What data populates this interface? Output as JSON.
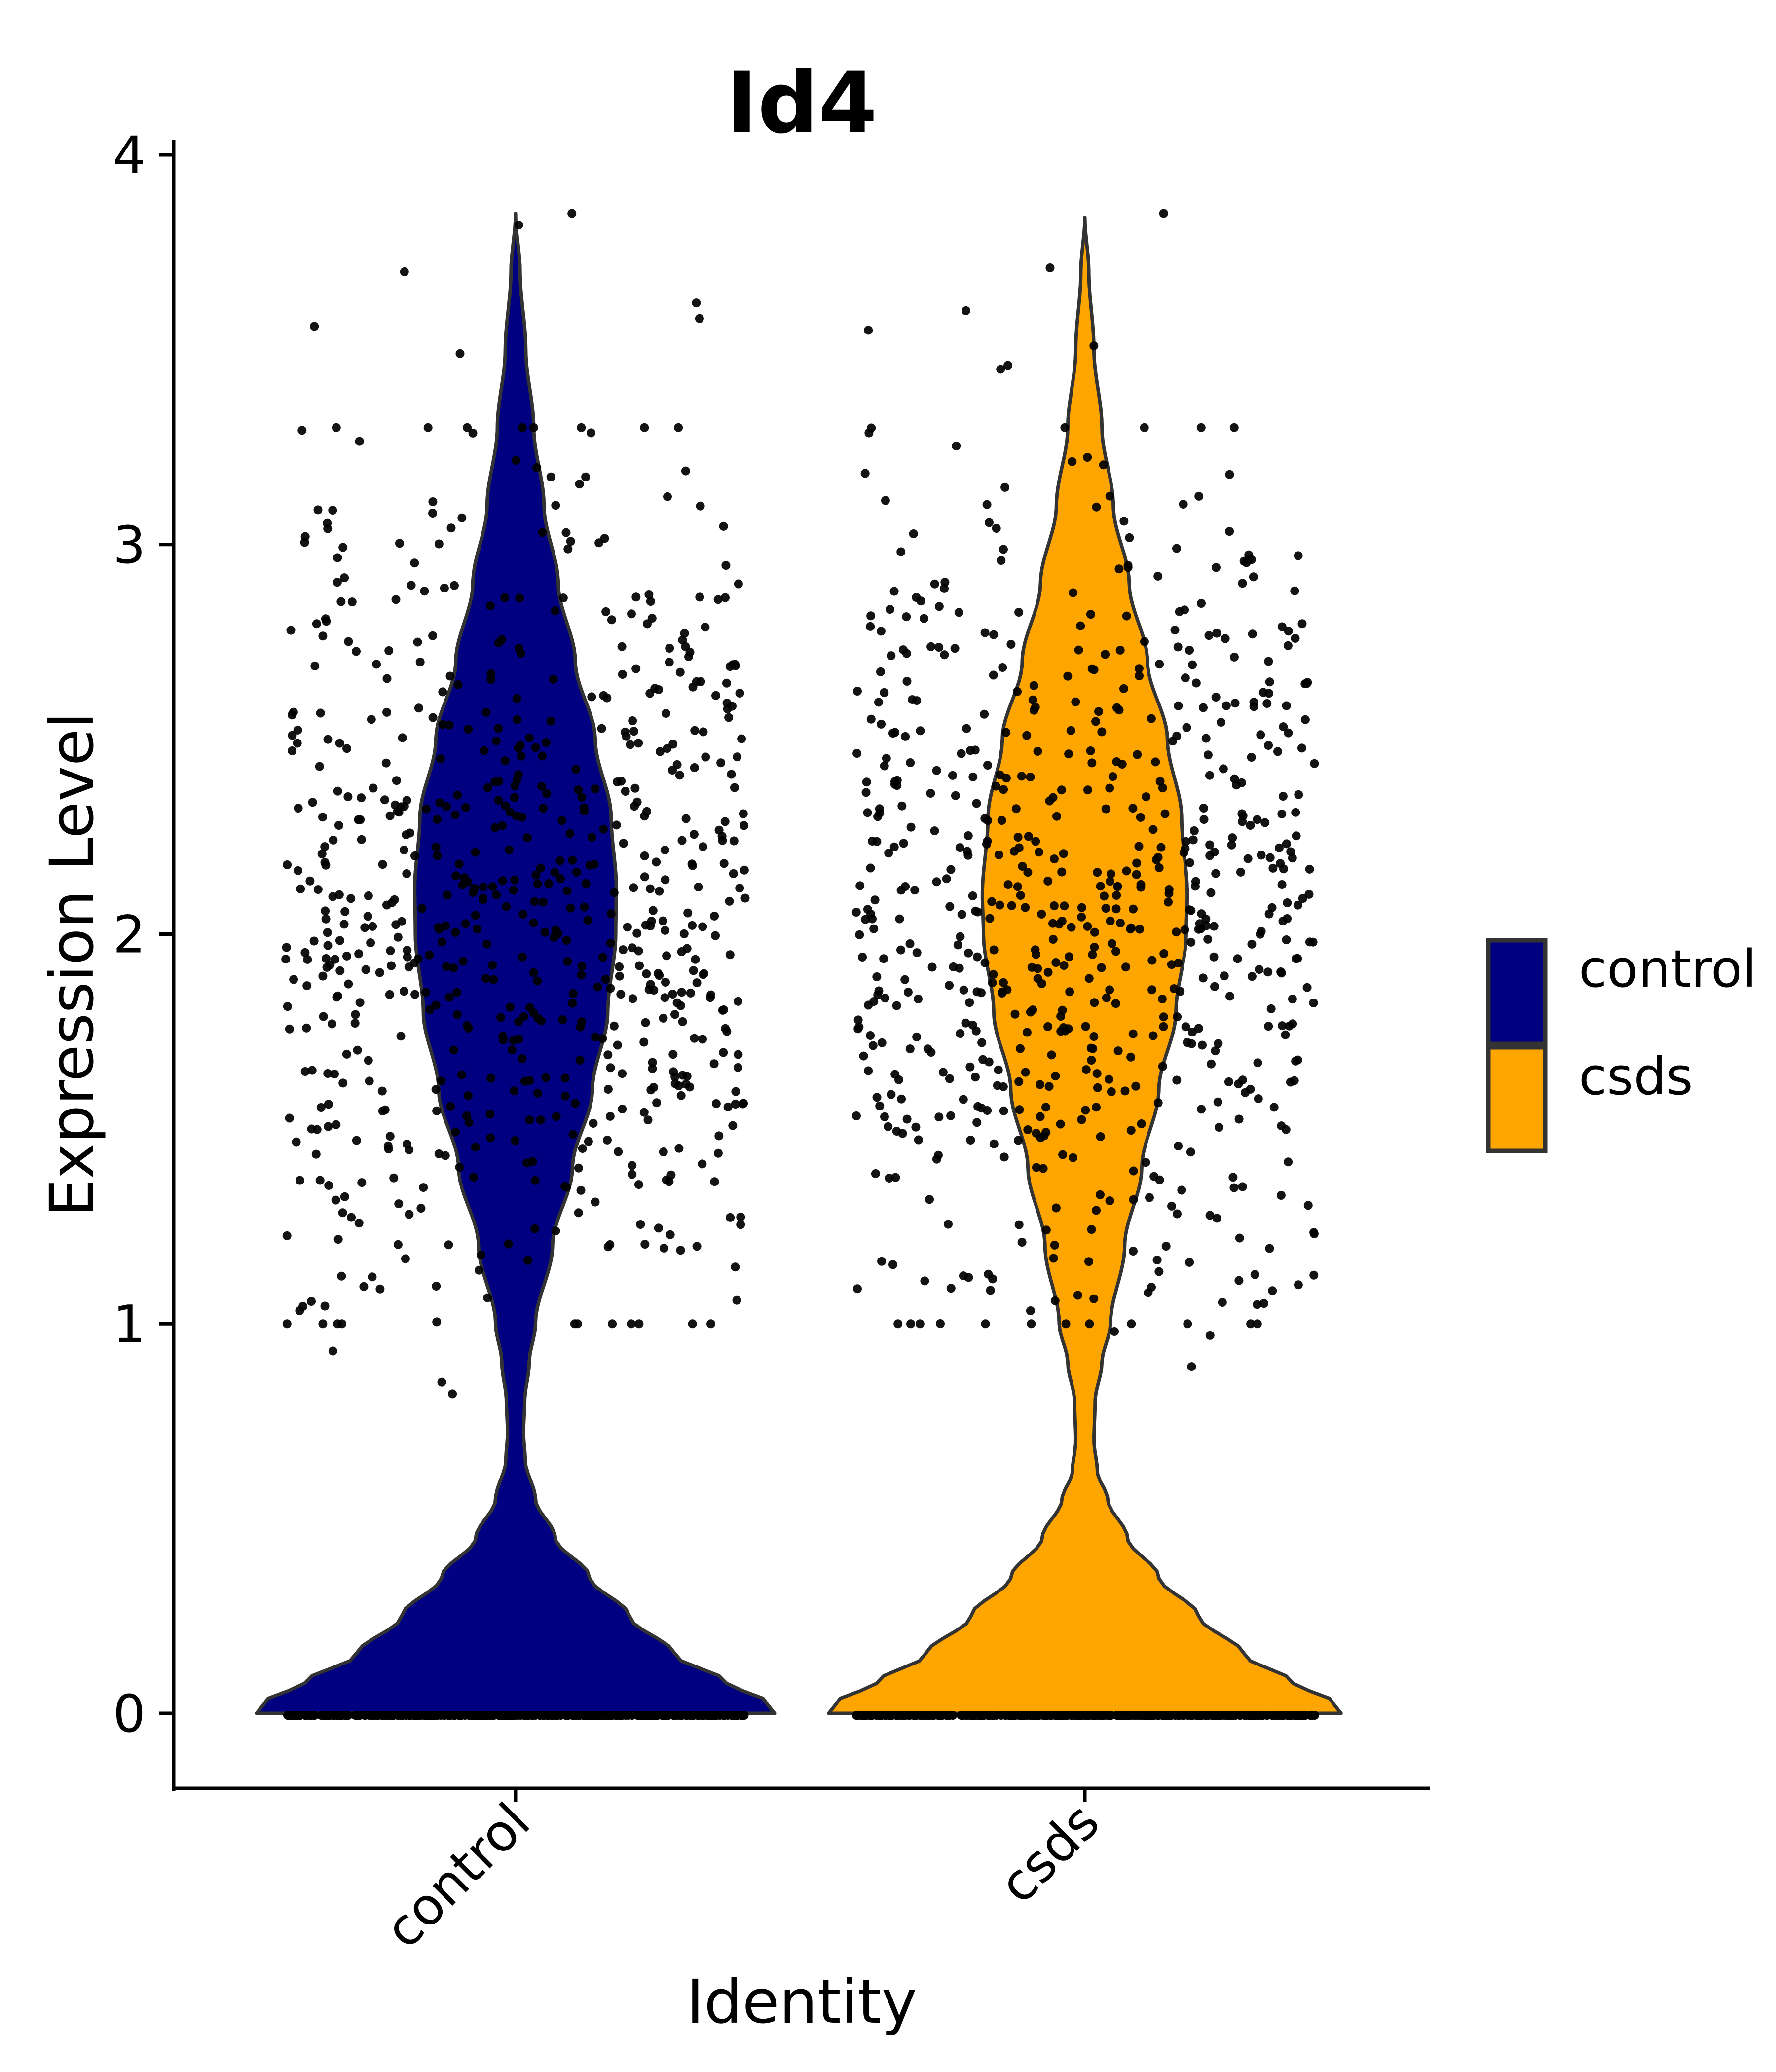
{
  "chart_data": {
    "type": "violin",
    "title": "Id4",
    "xlabel": "Identity",
    "ylabel": "Expression Level",
    "categories": [
      "control",
      "csds"
    ],
    "ylim": [
      -0.19,
      4.04
    ],
    "yticks": [
      0,
      1,
      2,
      3,
      4
    ],
    "ytick_labels": [
      "0",
      "1",
      "2",
      "3",
      "4"
    ],
    "grid": false,
    "legend": {
      "placement": "right",
      "entries": [
        {
          "label": "control",
          "color": "#000080"
        },
        {
          "label": "csds",
          "color": "#FFA500"
        }
      ]
    },
    "series": [
      {
        "name": "control",
        "color": "#000080",
        "outline": "#333333",
        "violin_max_value": 3.85,
        "violin_profile": [
          [
            0.0,
            0.455
          ],
          [
            0.03,
            0.44
          ],
          [
            0.08,
            0.37
          ],
          [
            0.15,
            0.28
          ],
          [
            0.25,
            0.2
          ],
          [
            0.35,
            0.13
          ],
          [
            0.45,
            0.07
          ],
          [
            0.55,
            0.035
          ],
          [
            0.65,
            0.017
          ],
          [
            0.72,
            0.014
          ],
          [
            0.8,
            0.016
          ],
          [
            0.9,
            0.024
          ],
          [
            1.0,
            0.035
          ],
          [
            1.2,
            0.065
          ],
          [
            1.4,
            0.1
          ],
          [
            1.6,
            0.135
          ],
          [
            1.8,
            0.162
          ],
          [
            2.0,
            0.176
          ],
          [
            2.12,
            0.177
          ],
          [
            2.3,
            0.168
          ],
          [
            2.5,
            0.14
          ],
          [
            2.7,
            0.105
          ],
          [
            2.9,
            0.075
          ],
          [
            3.1,
            0.05
          ],
          [
            3.3,
            0.032
          ],
          [
            3.5,
            0.018
          ],
          [
            3.7,
            0.008
          ],
          [
            3.85,
            0.0
          ]
        ],
        "zero_points": 420,
        "points_summary": {
          "count_nonzero": 700,
          "mean": 2.05,
          "sd": 0.55,
          "min": 0.82,
          "max": 3.85
        },
        "notable_points": [
          3.85,
          3.82,
          3.7,
          3.62,
          3.58,
          3.56,
          3.49,
          0.85,
          0.82,
          0.93
        ]
      },
      {
        "name": "csds",
        "color": "#FFA500",
        "outline": "#333333",
        "violin_max_value": 3.84,
        "violin_profile": [
          [
            0.0,
            0.45
          ],
          [
            0.03,
            0.435
          ],
          [
            0.08,
            0.365
          ],
          [
            0.15,
            0.28
          ],
          [
            0.25,
            0.2
          ],
          [
            0.35,
            0.13
          ],
          [
            0.45,
            0.075
          ],
          [
            0.55,
            0.04
          ],
          [
            0.62,
            0.022
          ],
          [
            0.7,
            0.016
          ],
          [
            0.8,
            0.018
          ],
          [
            0.9,
            0.03
          ],
          [
            1.0,
            0.045
          ],
          [
            1.2,
            0.07
          ],
          [
            1.4,
            0.1
          ],
          [
            1.6,
            0.13
          ],
          [
            1.8,
            0.16
          ],
          [
            2.0,
            0.178
          ],
          [
            2.1,
            0.18
          ],
          [
            2.3,
            0.17
          ],
          [
            2.5,
            0.145
          ],
          [
            2.7,
            0.11
          ],
          [
            2.9,
            0.078
          ],
          [
            3.1,
            0.05
          ],
          [
            3.3,
            0.03
          ],
          [
            3.5,
            0.016
          ],
          [
            3.7,
            0.007
          ],
          [
            3.84,
            0.0
          ]
        ],
        "zero_points": 430,
        "points_summary": {
          "count_nonzero": 700,
          "mean": 2.0,
          "sd": 0.55,
          "min": 0.89,
          "max": 3.85
        },
        "notable_points": [
          3.85,
          3.71,
          3.6,
          3.55,
          3.51,
          3.46,
          3.45,
          0.97,
          0.98,
          0.89
        ]
      }
    ]
  }
}
